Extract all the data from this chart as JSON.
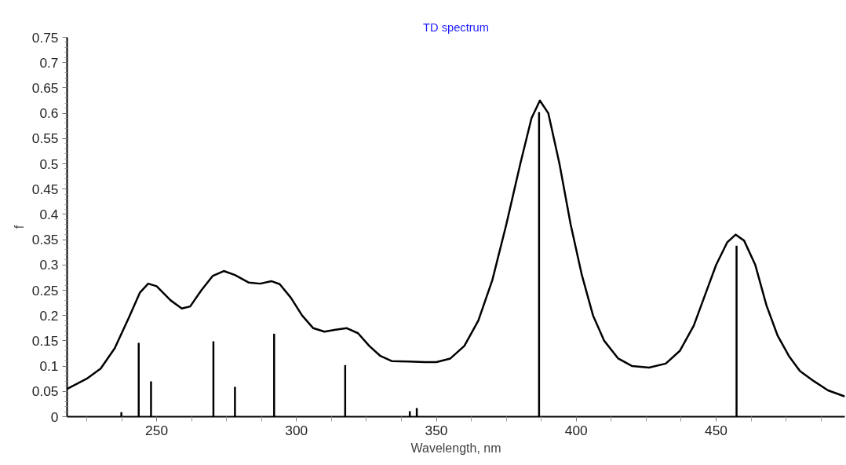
{
  "chart_data": {
    "type": "line",
    "title": "TD spectrum",
    "xlabel": "Wavelength, nm",
    "ylabel": "f",
    "xlim": [
      218,
      496
    ],
    "xticks": [
      250,
      300,
      350,
      400,
      450
    ],
    "ylim": [
      0,
      0.75
    ],
    "yticks": [
      0,
      0.05,
      0.1,
      0.15,
      0.2,
      0.25,
      0.3,
      0.35,
      0.4,
      0.45,
      0.5,
      0.55,
      0.6,
      0.65,
      0.7,
      0.75
    ],
    "grid": false,
    "line_style": "solid",
    "marker": "none",
    "series": [
      {
        "color": "#000000",
        "x": [
          218,
          225,
          230,
          235,
          240,
          244,
          247,
          250,
          255,
          259,
          262,
          266,
          270,
          274,
          278,
          283,
          287,
          291,
          294,
          298,
          302,
          306,
          310,
          314,
          318,
          322,
          326,
          330,
          334,
          340,
          346,
          350,
          355,
          360,
          365,
          370,
          375,
          380,
          384,
          387,
          390,
          394,
          398,
          402,
          406,
          410,
          415,
          420,
          426,
          432,
          437,
          442,
          446,
          450,
          454,
          457,
          460,
          464,
          468,
          472,
          476,
          480,
          485,
          490,
          496
        ],
        "values": [
          0.055,
          0.075,
          0.095,
          0.135,
          0.195,
          0.245,
          0.263,
          0.258,
          0.23,
          0.214,
          0.218,
          0.25,
          0.278,
          0.288,
          0.28,
          0.265,
          0.263,
          0.268,
          0.262,
          0.235,
          0.2,
          0.175,
          0.168,
          0.172,
          0.175,
          0.165,
          0.14,
          0.12,
          0.11,
          0.109,
          0.108,
          0.108,
          0.115,
          0.14,
          0.19,
          0.27,
          0.38,
          0.5,
          0.59,
          0.625,
          0.6,
          0.5,
          0.38,
          0.28,
          0.2,
          0.15,
          0.115,
          0.1,
          0.097,
          0.105,
          0.13,
          0.18,
          0.24,
          0.3,
          0.345,
          0.36,
          0.348,
          0.3,
          0.22,
          0.16,
          0.12,
          0.09,
          0.07,
          0.052,
          0.04
        ]
      },
      {
        "type": "bar",
        "color": "#000000",
        "x": [
          237.4,
          243.6,
          248.0,
          270.3,
          278.0,
          292.0,
          317.4,
          340.5,
          343.0,
          386.7,
          457.3
        ],
        "values": [
          0.009,
          0.146,
          0.07,
          0.149,
          0.059,
          0.164,
          0.102,
          0.011,
          0.017,
          0.602,
          0.338
        ]
      }
    ]
  }
}
